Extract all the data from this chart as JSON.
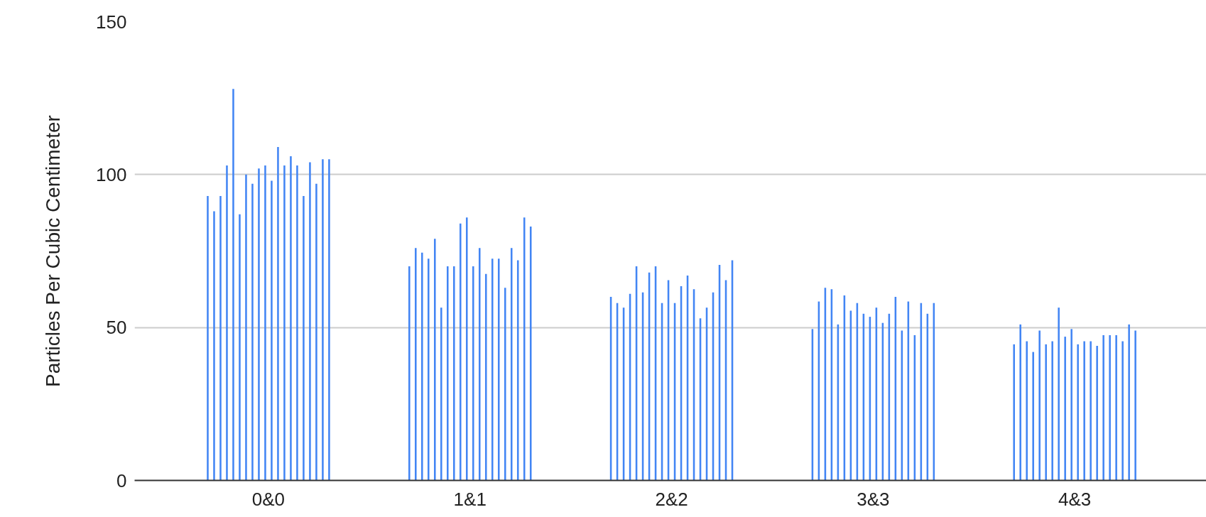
{
  "chart_data": {
    "type": "bar",
    "ylabel": "Particles Per Cubic Centimeter",
    "categories": [
      "0&0",
      "1&1",
      "2&2",
      "3&3",
      "4&3"
    ],
    "ylim": [
      0,
      150
    ],
    "yticks": [
      0,
      50,
      100,
      150
    ],
    "grid": "y",
    "series": [
      {
        "color": "#4285f4",
        "values": [
          93,
          70,
          60,
          49.5,
          44.5
        ]
      },
      {
        "color": "#4285f4",
        "values": [
          88,
          76,
          58,
          58.5,
          51
        ]
      },
      {
        "color": "#4285f4",
        "values": [
          93,
          74.5,
          56.5,
          63,
          45.5
        ]
      },
      {
        "color": "#4285f4",
        "values": [
          103,
          72.5,
          61,
          62.5,
          42
        ]
      },
      {
        "color": "#4285f4",
        "values": [
          128,
          79,
          70,
          51,
          49
        ]
      },
      {
        "color": "#4285f4",
        "values": [
          87,
          56.5,
          61.5,
          60.5,
          44.5
        ]
      },
      {
        "color": "#4285f4",
        "values": [
          100,
          70,
          68,
          55.5,
          45.5
        ]
      },
      {
        "color": "#4285f4",
        "values": [
          97,
          70,
          70,
          58,
          56.5
        ]
      },
      {
        "color": "#4285f4",
        "values": [
          102,
          84,
          58,
          54.5,
          47
        ]
      },
      {
        "color": "#4285f4",
        "values": [
          103,
          86,
          65.5,
          53.5,
          49.5
        ]
      },
      {
        "color": "#4285f4",
        "values": [
          98,
          70,
          58,
          56.5,
          44.5
        ]
      },
      {
        "color": "#4285f4",
        "values": [
          109,
          76,
          63.5,
          51.5,
          45.5
        ]
      },
      {
        "color": "#4285f4",
        "values": [
          103,
          67.5,
          67,
          54.5,
          45.5
        ]
      },
      {
        "color": "#4285f4",
        "values": [
          106,
          72.5,
          62.5,
          60,
          44
        ]
      },
      {
        "color": "#4285f4",
        "values": [
          103,
          72.5,
          53,
          49,
          47.5
        ]
      },
      {
        "color": "#4285f4",
        "values": [
          93,
          63,
          56.5,
          58.5,
          47.5
        ]
      },
      {
        "color": "#4285f4",
        "values": [
          104,
          76,
          61.5,
          47.5,
          47.5
        ]
      },
      {
        "color": "#4285f4",
        "values": [
          97,
          72,
          70.5,
          58,
          45.5
        ]
      },
      {
        "color": "#4285f4",
        "values": [
          105,
          86,
          65.5,
          54.5,
          51
        ]
      },
      {
        "color": "#4285f4",
        "values": [
          105,
          83,
          72,
          58,
          49
        ]
      }
    ]
  }
}
